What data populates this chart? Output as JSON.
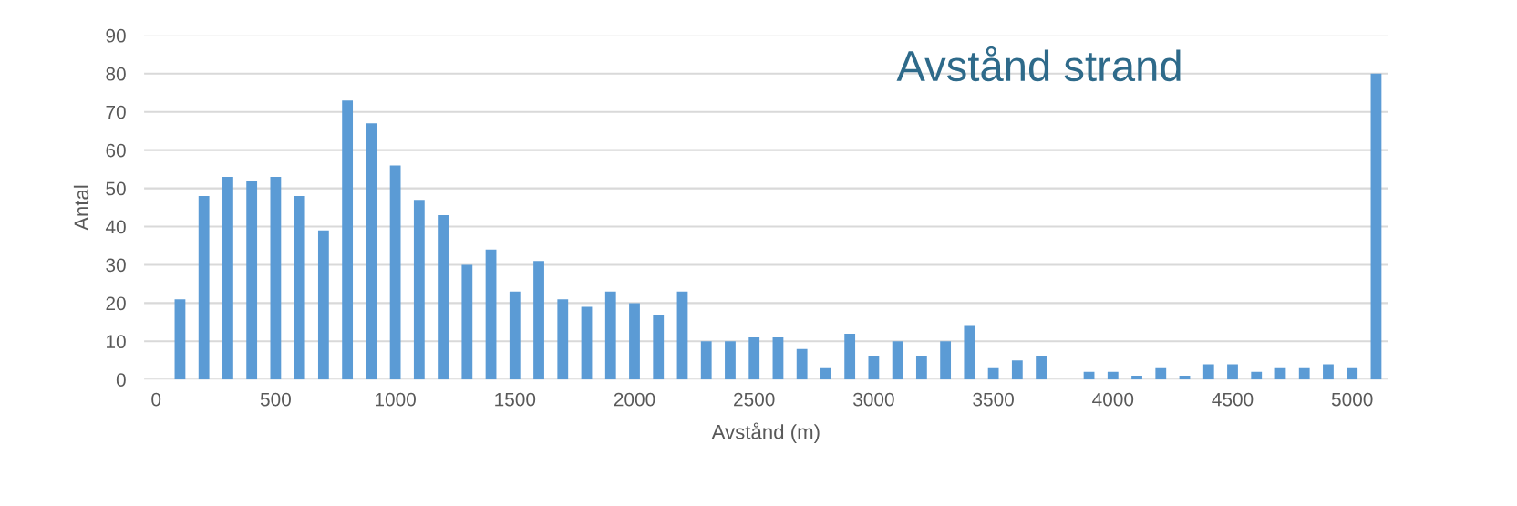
{
  "chart_data": {
    "type": "bar",
    "title": "Avstånd strand",
    "xlabel": "Avstånd (m)",
    "ylabel": "Antal",
    "categories": [
      "0",
      null,
      null,
      null,
      null,
      "500",
      null,
      null,
      null,
      null,
      "1000",
      null,
      null,
      null,
      null,
      "1500",
      null,
      null,
      null,
      null,
      "2000",
      null,
      null,
      null,
      null,
      "2500",
      null,
      null,
      null,
      null,
      "3000",
      null,
      null,
      null,
      null,
      "3500",
      null,
      null,
      null,
      null,
      "4000",
      null,
      null,
      null,
      null,
      "4500",
      null,
      null,
      null,
      null,
      "5000",
      null
    ],
    "values": [
      0,
      21,
      48,
      53,
      52,
      53,
      48,
      39,
      73,
      67,
      56,
      47,
      43,
      30,
      34,
      23,
      31,
      21,
      19,
      23,
      20,
      17,
      23,
      10,
      10,
      11,
      11,
      8,
      3,
      12,
      6,
      10,
      6,
      10,
      14,
      3,
      5,
      6,
      0,
      2,
      2,
      1,
      3,
      1,
      4,
      4,
      2,
      3,
      3,
      4,
      3,
      80
    ],
    "color": "#5b9bd5",
    "ylim": [
      0,
      90
    ],
    "yticks": [
      0,
      10,
      20,
      30,
      40,
      50,
      60,
      70,
      80,
      90
    ],
    "grid": "y",
    "legend": false
  }
}
